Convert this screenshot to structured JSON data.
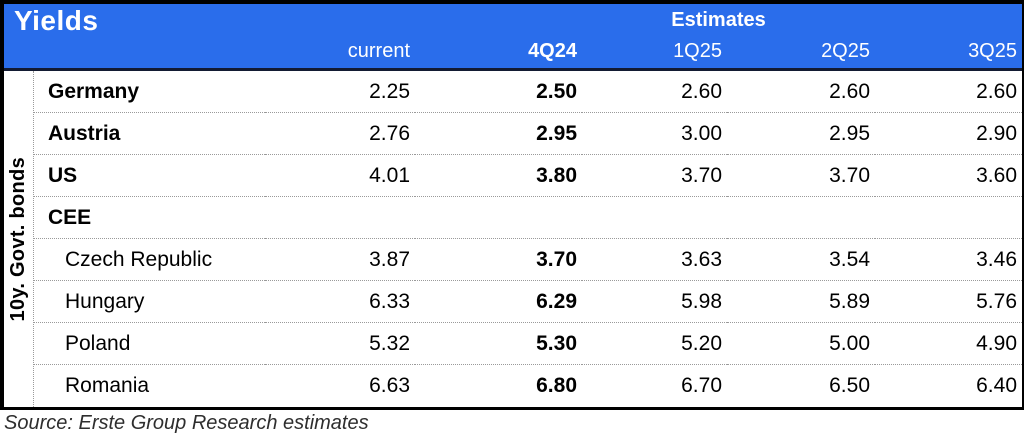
{
  "colors": {
    "header_bg": "#2a6deb",
    "header_rule": "#131b33",
    "border": "#000000",
    "row_separator": "#9a9a9a"
  },
  "chart_data": {
    "type": "table",
    "title": "Yields",
    "group_header": "Estimates",
    "row_group_label": "10y. Govt. bonds",
    "columns": [
      "current",
      "4Q24",
      "1Q25",
      "2Q25",
      "3Q25"
    ],
    "estimate_columns": [
      "4Q24",
      "1Q25",
      "2Q25",
      "3Q25"
    ],
    "rows": [
      {
        "label": "Germany",
        "bold": true,
        "values": [
          "2.25",
          "2.50",
          "2.60",
          "2.60",
          "2.60"
        ]
      },
      {
        "label": "Austria",
        "bold": true,
        "values": [
          "2.76",
          "2.95",
          "3.00",
          "2.95",
          "2.90"
        ]
      },
      {
        "label": "US",
        "bold": true,
        "values": [
          "4.01",
          "3.80",
          "3.70",
          "3.70",
          "3.60"
        ]
      },
      {
        "label": "CEE",
        "bold": true,
        "values": []
      },
      {
        "label": "Czech Republic",
        "bold": false,
        "values": [
          "3.87",
          "3.70",
          "3.63",
          "3.54",
          "3.46"
        ]
      },
      {
        "label": "Hungary",
        "bold": false,
        "values": [
          "6.33",
          "6.29",
          "5.98",
          "5.89",
          "5.76"
        ]
      },
      {
        "label": "Poland",
        "bold": false,
        "values": [
          "5.32",
          "5.30",
          "5.20",
          "5.00",
          "4.90"
        ]
      },
      {
        "label": "Romania",
        "bold": false,
        "values": [
          "6.63",
          "6.80",
          "6.70",
          "6.50",
          "6.40"
        ]
      }
    ],
    "source": "Source: Erste Group Research estimates"
  }
}
